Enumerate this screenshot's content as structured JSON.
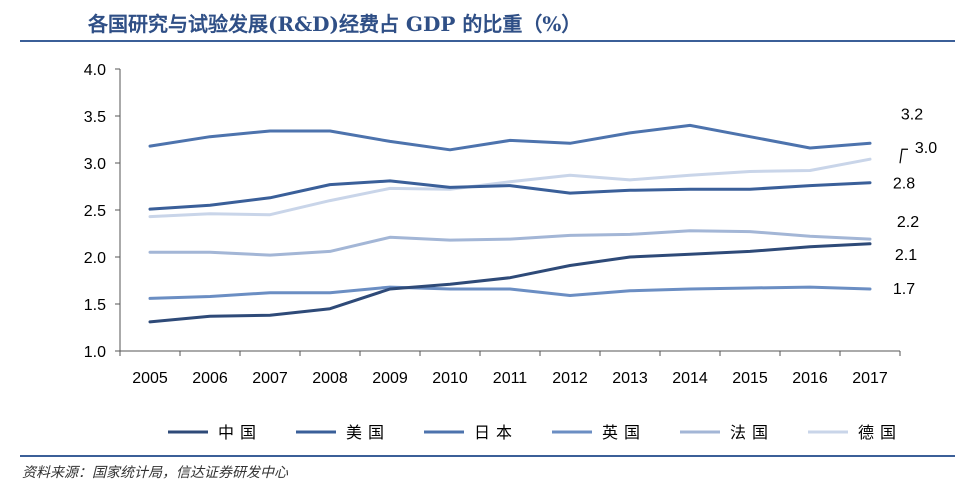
{
  "title": "各国研究与试验发展(R&D)经费占 GDP 的比重（%）",
  "source": "资料来源：国家统计局，信达证券研发中心",
  "chart_data": {
    "type": "line",
    "title": "各国研究与试验发展(R&D)经费占 GDP 的比重（%）",
    "xlabel": "",
    "ylabel": "",
    "ylim": [
      1.0,
      4.0
    ],
    "yticks": [
      "1.0",
      "1.5",
      "2.0",
      "2.5",
      "3.0",
      "3.5",
      "4.0"
    ],
    "categories": [
      "2005",
      "2006",
      "2007",
      "2008",
      "2009",
      "2010",
      "2011",
      "2012",
      "2013",
      "2014",
      "2015",
      "2016",
      "2017"
    ],
    "grid": false,
    "legend_position": "bottom",
    "series": [
      {
        "name": "中国",
        "color": "#2e4a78",
        "end_label": "2.1",
        "values": [
          1.31,
          1.37,
          1.38,
          1.45,
          1.66,
          1.71,
          1.78,
          1.91,
          2.0,
          2.03,
          2.06,
          2.11,
          2.14
        ]
      },
      {
        "name": "美国",
        "color": "#3a5f99",
        "end_label": "2.8",
        "values": [
          2.51,
          2.55,
          2.63,
          2.77,
          2.81,
          2.74,
          2.76,
          2.68,
          2.71,
          2.72,
          2.72,
          2.76,
          2.79
        ]
      },
      {
        "name": "日本",
        "color": "#4d73ad",
        "end_label": "3.2",
        "values": [
          3.18,
          3.28,
          3.34,
          3.34,
          3.23,
          3.14,
          3.24,
          3.21,
          3.32,
          3.4,
          3.28,
          3.16,
          3.21
        ]
      },
      {
        "name": "英国",
        "color": "#6b8ec3",
        "end_label": "1.7",
        "values": [
          1.56,
          1.58,
          1.62,
          1.62,
          1.68,
          1.66,
          1.66,
          1.59,
          1.64,
          1.66,
          1.67,
          1.68,
          1.66
        ]
      },
      {
        "name": "法国",
        "color": "#a3b6d6",
        "end_label": "2.2",
        "values": [
          2.05,
          2.05,
          2.02,
          2.06,
          2.21,
          2.18,
          2.19,
          2.23,
          2.24,
          2.28,
          2.27,
          2.22,
          2.19
        ]
      },
      {
        "name": "德国",
        "color": "#c9d5e9",
        "end_label": "3.0",
        "values": [
          2.43,
          2.46,
          2.45,
          2.6,
          2.73,
          2.72,
          2.8,
          2.87,
          2.82,
          2.87,
          2.91,
          2.92,
          3.04
        ]
      }
    ]
  }
}
